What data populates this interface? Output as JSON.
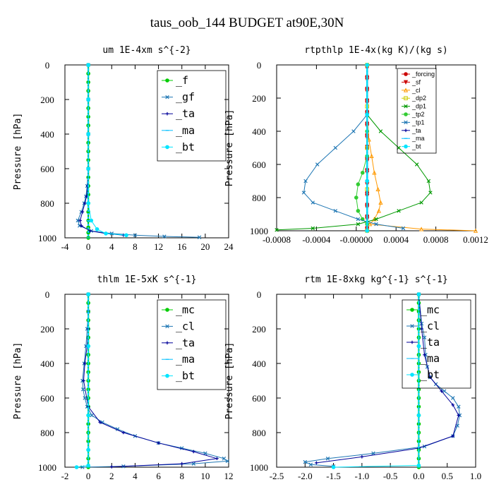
{
  "title": "taus_oob_144  BUDGET at90E,30N",
  "chart_data": [
    {
      "type": "line",
      "title": "um  1E-4xm s^{-2}",
      "ylabel": "Pressure [hPa]",
      "xlim": [
        -4,
        24
      ],
      "ylim": [
        1000,
        0
      ],
      "xticks": [
        "-4",
        "0",
        "4",
        "8",
        "12",
        "16",
        "20",
        "24"
      ],
      "yticks": [
        "0",
        "200",
        "400",
        "600",
        "800",
        "1000"
      ],
      "legend_size": "big",
      "series": [
        {
          "name": "_f",
          "color": "#00cc00",
          "marker": "o",
          "x": [
            0,
            0,
            0,
            0,
            0,
            0,
            0,
            0,
            0,
            0,
            0,
            0,
            0,
            0,
            0,
            0,
            0,
            0,
            0,
            0,
            0,
            0
          ],
          "y": [
            0,
            50,
            100,
            150,
            200,
            250,
            300,
            350,
            400,
            450,
            500,
            550,
            600,
            650,
            700,
            750,
            800,
            850,
            900,
            940,
            970,
            1000
          ]
        },
        {
          "name": "_gf",
          "color": "#1f77b4",
          "marker": "x",
          "x": [
            0,
            0,
            0,
            0,
            -0.2,
            -0.4,
            -0.7,
            -1.2,
            -1.8,
            -1.5,
            0.5,
            4,
            8,
            13,
            19
          ],
          "y": [
            0,
            200,
            400,
            600,
            700,
            760,
            800,
            850,
            900,
            930,
            960,
            975,
            985,
            992,
            997
          ]
        },
        {
          "name": "_ta",
          "color": "#000099",
          "marker": "+",
          "x": [
            0,
            0,
            0,
            0,
            -0.1,
            -0.3,
            -0.6,
            -1.0,
            -1.4,
            -1.2,
            0.3,
            3,
            6
          ],
          "y": [
            0,
            200,
            400,
            600,
            700,
            760,
            800,
            850,
            900,
            930,
            960,
            975,
            985
          ]
        },
        {
          "name": "_ma",
          "color": "#00bfff",
          "marker": "-",
          "x": [
            0,
            0,
            0,
            0,
            0,
            0,
            0
          ],
          "y": [
            0,
            200,
            400,
            600,
            800,
            900,
            1000
          ]
        },
        {
          "name": "_bt",
          "color": "#00e5ff",
          "marker": "o",
          "x": [
            0,
            0,
            0,
            0,
            0,
            0.5,
            1.5,
            3,
            6.5
          ],
          "y": [
            0,
            200,
            400,
            600,
            800,
            900,
            950,
            975,
            985
          ]
        }
      ]
    },
    {
      "type": "line",
      "title": "rtpthlp  1E-4x(kg K)/(kg s)",
      "ylabel": "Pressure [hPa]",
      "xlim": [
        -0.001,
        0.0012
      ],
      "ylim": [
        1000,
        0
      ],
      "xticks": [
        "-0.0008",
        "-0.0004",
        "-0.00000",
        "0.0004",
        "0.0008",
        "0.0012"
      ],
      "yticks": [
        "0",
        "200",
        "400",
        "600",
        "800",
        "1000"
      ],
      "legend_size": "small",
      "series": [
        {
          "name": "_forcing",
          "color": "#cc0000",
          "marker": "o",
          "x": [
            0,
            0,
            0,
            0,
            0,
            0,
            0,
            0,
            0,
            0,
            0,
            0,
            0,
            0,
            0
          ],
          "y": [
            0,
            70,
            140,
            210,
            280,
            350,
            420,
            490,
            560,
            630,
            700,
            770,
            840,
            910,
            980
          ]
        },
        {
          "name": "_sf",
          "color": "#cc0000",
          "marker": "v",
          "x": [
            0,
            0,
            0,
            0,
            0,
            0,
            0,
            0,
            0,
            0,
            0,
            0,
            0,
            0,
            0
          ],
          "y": [
            20,
            90,
            160,
            230,
            300,
            370,
            440,
            510,
            580,
            650,
            720,
            790,
            860,
            930,
            1000
          ]
        },
        {
          "name": "_cl",
          "color": "#ff9900",
          "marker": "^",
          "x": [
            0,
            2e-05,
            5e-05,
            8e-05,
            0.00012,
            0.00015,
            0.00013,
            8e-05,
            3e-05,
            0.0006,
            0.0012
          ],
          "y": [
            300,
            450,
            550,
            650,
            750,
            830,
            880,
            930,
            960,
            990,
            1000
          ]
        },
        {
          "name": "_dp2",
          "color": "#cccc00",
          "marker": "s",
          "x": [
            0,
            0,
            0,
            0,
            0
          ],
          "y": [
            0,
            250,
            500,
            750,
            1000
          ]
        },
        {
          "name": "_dp1",
          "color": "#009900",
          "marker": "x",
          "x": [
            0,
            0.00015,
            0.00035,
            0.00055,
            0.00068,
            0.0007,
            0.0006,
            0.00035,
            0.0001,
            -0.0001,
            -0.0006,
            -0.001
          ],
          "y": [
            300,
            400,
            500,
            600,
            700,
            770,
            830,
            880,
            930,
            960,
            985,
            995
          ]
        },
        {
          "name": "_tp2",
          "color": "#33cc33",
          "marker": "o",
          "x": [
            0,
            0,
            -5e-05,
            -0.0001,
            -0.00012,
            -0.0001,
            -5e-05,
            0
          ],
          "y": [
            400,
            550,
            650,
            720,
            800,
            880,
            930,
            960
          ]
        },
        {
          "name": "_tp1",
          "color": "#1f77b4",
          "marker": "x",
          "x": [
            0,
            -0.00015,
            -0.00035,
            -0.00055,
            -0.00068,
            -0.0007,
            -0.0006,
            -0.00035,
            -0.0001,
            0.0001,
            0.0004
          ],
          "y": [
            300,
            400,
            500,
            600,
            700,
            770,
            830,
            880,
            930,
            960,
            985
          ]
        },
        {
          "name": "_ta",
          "color": "#000099",
          "marker": "+",
          "x": [
            0,
            0,
            0,
            0
          ],
          "y": [
            0,
            300,
            700,
            1000
          ]
        },
        {
          "name": "_ma",
          "color": "#00bfff",
          "marker": "-",
          "x": [
            0,
            0,
            0,
            0
          ],
          "y": [
            0,
            300,
            700,
            1000
          ]
        },
        {
          "name": "_bt",
          "color": "#00e5ff",
          "marker": "o",
          "x": [
            0,
            0,
            0,
            0
          ],
          "y": [
            0,
            300,
            700,
            1000
          ]
        }
      ]
    },
    {
      "type": "line",
      "title": "thlm  1E-5xK s^{-1}",
      "ylabel": "Pressure [hPa]",
      "xlim": [
        -2,
        12
      ],
      "ylim": [
        1000,
        0
      ],
      "xticks": [
        "-2",
        "0",
        "2",
        "4",
        "6",
        "8",
        "10",
        "12"
      ],
      "yticks": [
        "0",
        "200",
        "400",
        "600",
        "800",
        "1000"
      ],
      "legend_size": "big",
      "series": [
        {
          "name": "_mc",
          "color": "#00cc00",
          "marker": "o",
          "x": [
            0,
            0,
            0,
            0,
            0,
            0,
            0,
            0,
            0,
            0,
            0,
            0,
            0,
            0,
            0,
            0,
            0,
            0,
            0,
            0,
            0
          ],
          "y": [
            0,
            50,
            100,
            150,
            200,
            250,
            300,
            350,
            400,
            450,
            500,
            550,
            600,
            650,
            700,
            750,
            800,
            850,
            900,
            950,
            1000
          ]
        },
        {
          "name": "_cl",
          "color": "#1f77b4",
          "marker": "x",
          "x": [
            0,
            0,
            -0.1,
            -0.2,
            -0.35,
            -0.5,
            -0.45,
            -0.3,
            -0.1,
            0.3,
            1.2,
            2.5,
            4,
            6,
            8,
            10,
            11.6,
            11.9,
            9,
            3,
            -0.5
          ],
          "y": [
            0,
            100,
            200,
            300,
            400,
            500,
            550,
            600,
            650,
            700,
            740,
            780,
            820,
            860,
            890,
            920,
            950,
            965,
            980,
            995,
            1000
          ]
        },
        {
          "name": "_ta",
          "color": "#000099",
          "marker": "+",
          "x": [
            0,
            0,
            -0.1,
            -0.3,
            -0.4,
            0,
            1,
            3,
            6,
            9,
            11,
            8,
            2
          ],
          "y": [
            0,
            200,
            300,
            400,
            500,
            650,
            740,
            800,
            860,
            910,
            950,
            980,
            998
          ]
        },
        {
          "name": "_ma",
          "color": "#00bfff",
          "marker": "-",
          "x": [
            0,
            0,
            0,
            0
          ],
          "y": [
            0,
            300,
            700,
            1000
          ]
        },
        {
          "name": "_bt",
          "color": "#00e5ff",
          "marker": "o",
          "x": [
            0,
            0,
            0,
            0,
            0,
            -1
          ],
          "y": [
            0,
            300,
            700,
            900,
            990,
            1000
          ]
        }
      ]
    },
    {
      "type": "line",
      "title": "rtm  1E-8xkg kg^{-1} s^{-1}",
      "ylabel": "Pressure [hPa]",
      "xlim": [
        -2.5,
        1.0
      ],
      "ylim": [
        1000,
        0
      ],
      "xticks": [
        "-2.5",
        "-2.0",
        "-1.5",
        "-1.0",
        "-0.5",
        "0.0",
        "0.5",
        "1.0"
      ],
      "yticks": [
        "0",
        "200",
        "400",
        "600",
        "800",
        "1000"
      ],
      "legend_size": "big",
      "series": [
        {
          "name": "_mc",
          "color": "#00cc00",
          "marker": "o",
          "x": [
            0,
            0,
            0,
            0,
            0,
            0,
            0,
            0,
            0,
            0,
            0,
            0,
            0,
            0,
            0,
            0,
            0,
            0,
            0,
            0,
            0
          ],
          "y": [
            0,
            50,
            100,
            150,
            200,
            250,
            300,
            350,
            400,
            450,
            500,
            550,
            600,
            650,
            700,
            750,
            800,
            850,
            900,
            950,
            1000
          ]
        },
        {
          "name": "_cl",
          "color": "#1f77b4",
          "marker": "x",
          "x": [
            0,
            0.05,
            0.1,
            0.12,
            0.15,
            0.2,
            0.3,
            0.45,
            0.6,
            0.7,
            0.72,
            0.68,
            0.6,
            0.1,
            -0.8,
            -1.6,
            -2.0,
            -1.9,
            -1.5
          ],
          "y": [
            0,
            170,
            250,
            350,
            420,
            480,
            520,
            560,
            600,
            650,
            700,
            760,
            820,
            880,
            920,
            950,
            970,
            985,
            995
          ]
        },
        {
          "name": "_ta",
          "color": "#000099",
          "marker": "+",
          "x": [
            0,
            0.05,
            0.1,
            0.2,
            0.4,
            0.6,
            0.7,
            0.6,
            0,
            -1.0,
            -1.8
          ],
          "y": [
            0,
            200,
            350,
            480,
            560,
            640,
            700,
            820,
            890,
            940,
            975
          ]
        },
        {
          "name": "_ma",
          "color": "#00bfff",
          "marker": "-",
          "x": [
            0,
            0,
            0,
            0
          ],
          "y": [
            0,
            300,
            700,
            1000
          ]
        },
        {
          "name": "_bt",
          "color": "#00e5ff",
          "marker": "o",
          "x": [
            0,
            0,
            0,
            0,
            -1.5
          ],
          "y": [
            0,
            300,
            700,
            990,
            1000
          ]
        }
      ]
    }
  ]
}
